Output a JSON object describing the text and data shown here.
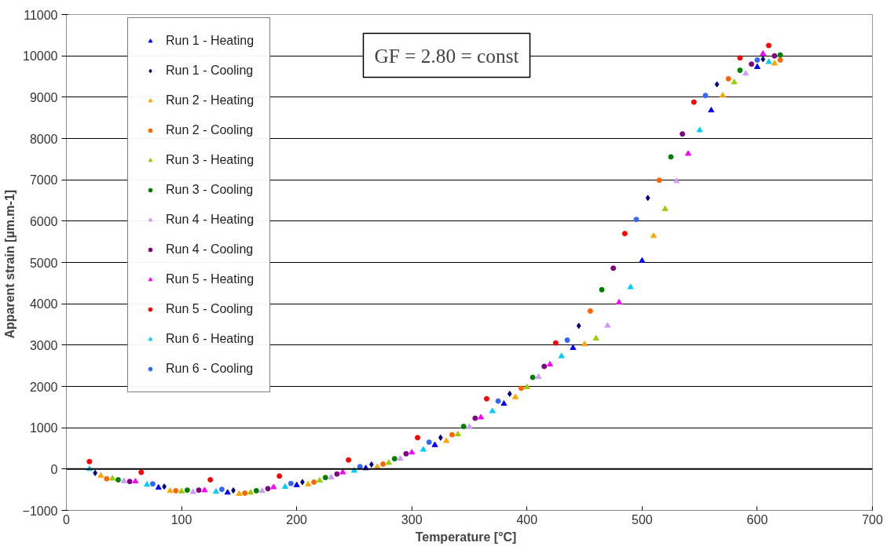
{
  "chart_data": {
    "type": "scatter",
    "xlabel": "Temperature   [°C]",
    "ylabel": "Apparent strain  [µm.m-1]",
    "annotations": [
      "GF = 2.80 = const"
    ],
    "xlim": [
      0,
      700
    ],
    "xticks": [
      0,
      100,
      200,
      300,
      400,
      500,
      600,
      700
    ],
    "ylim": [
      -1000,
      11000
    ],
    "yticks": [
      -1000,
      0,
      1000,
      2000,
      3000,
      4000,
      5000,
      6000,
      7000,
      8000,
      9000,
      10000,
      11000
    ],
    "grid": "y",
    "legend": "top left",
    "series": [
      {
        "name": "Run 1 - Heating",
        "color": "#0000ff",
        "marker": "triangle",
        "x": [
          80,
          140,
          200,
          260,
          320,
          380,
          440,
          500,
          560,
          600
        ],
        "values": [
          -450,
          -570,
          -390,
          20,
          580,
          1580,
          2930,
          5040,
          8680,
          9730
        ]
      },
      {
        "name": "Run 1 - Cooling",
        "color": "#000080",
        "marker": "diamond",
        "x": [
          25,
          85,
          145,
          205,
          265,
          325,
          385,
          445,
          505,
          565,
          605
        ],
        "values": [
          -95,
          -425,
          -518,
          -315,
          110,
          760,
          1820,
          3465,
          6560,
          9310,
          9920
        ]
      },
      {
        "name": "Run 2 - Heating",
        "color": "#ffa500",
        "marker": "triangle",
        "x": [
          30,
          90,
          150,
          210,
          270,
          330,
          390,
          450,
          510,
          570,
          615
        ],
        "values": [
          -160,
          -530,
          -600,
          -370,
          50,
          680,
          1740,
          3020,
          5640,
          9040,
          9815
        ]
      },
      {
        "name": "Run 2 - Cooling",
        "color": "#ff6600",
        "marker": "circle",
        "x": [
          35,
          95,
          155,
          215,
          275,
          335,
          395,
          455,
          515,
          575,
          620
        ],
        "values": [
          -235,
          -525,
          -583,
          -315,
          120,
          830,
          1955,
          3825,
          6990,
          9445,
          9900
        ]
      },
      {
        "name": "Run 3 - Heating",
        "color": "#99cc00",
        "marker": "triangle",
        "x": [
          40,
          100,
          160,
          220,
          280,
          340,
          400,
          460,
          520,
          580
        ],
        "values": [
          -230,
          -540,
          -570,
          -280,
          150,
          840,
          1980,
          3160,
          6290,
          9360
        ]
      },
      {
        "name": "Run 3 - Cooling",
        "color": "#008000",
        "marker": "circle",
        "x": [
          45,
          105,
          165,
          225,
          285,
          345,
          405,
          465,
          525,
          585,
          620
        ],
        "values": [
          -260,
          -510,
          -525,
          -205,
          250,
          1030,
          2220,
          4340,
          7555,
          9650,
          10020
        ]
      },
      {
        "name": "Run 4 - Heating",
        "color": "#cc99ff",
        "marker": "triangle",
        "x": [
          50,
          110,
          170,
          230,
          290,
          350,
          410,
          470,
          530,
          590
        ],
        "values": [
          -290,
          -555,
          -530,
          -200,
          250,
          1020,
          2230,
          3470,
          6970,
          9570
        ]
      },
      {
        "name": "Run 4 - Cooling",
        "color": "#800080",
        "marker": "circle",
        "x": [
          55,
          115,
          175,
          235,
          295,
          355,
          415,
          475,
          535,
          595,
          615
        ],
        "values": [
          -300,
          -510,
          -475,
          -120,
          370,
          1230,
          2485,
          4860,
          8110,
          9800,
          10000
        ]
      },
      {
        "name": "Run 5 - Heating",
        "color": "#ff00ff",
        "marker": "triangle",
        "x": [
          60,
          120,
          180,
          240,
          300,
          360,
          420,
          480,
          540,
          605
        ],
        "values": [
          -300,
          -515,
          -440,
          -80,
          400,
          1250,
          2530,
          4030,
          7630,
          10050
        ]
      },
      {
        "name": "Run 5 - Cooling",
        "color": "#ff0000",
        "marker": "circle",
        "x": [
          20,
          65,
          125,
          185,
          245,
          305,
          365,
          425,
          485,
          545,
          585,
          610
        ],
        "values": [
          180,
          -80,
          -260,
          -170,
          220,
          760,
          1700,
          3050,
          5700,
          8880,
          9950,
          10250
        ]
      },
      {
        "name": "Run 6 - Heating",
        "color": "#00ccff",
        "marker": "triangle",
        "x": [
          20,
          70,
          130,
          190,
          250,
          310,
          370,
          430,
          490,
          550,
          610
        ],
        "values": [
          0,
          -380,
          -550,
          -430,
          -40,
          470,
          1400,
          2730,
          4400,
          8200,
          9850
        ]
      },
      {
        "name": "Run 6 - Cooling",
        "color": "#3366ff",
        "marker": "circle",
        "x": [
          75,
          135,
          195,
          255,
          315,
          375,
          435,
          495,
          555,
          600
        ],
        "values": [
          -358,
          -490,
          -350,
          60,
          650,
          1645,
          3120,
          6040,
          9040,
          9900
        ]
      }
    ]
  }
}
